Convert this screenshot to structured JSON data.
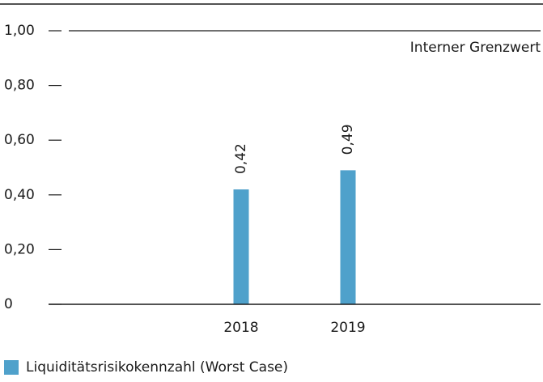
{
  "chart_data": {
    "type": "bar",
    "categories": [
      "2018",
      "2019"
    ],
    "series": [
      {
        "name": "Liquiditätsrisikokennzahl (Worst Case)",
        "color": "#4fa1cb",
        "values": [
          0.42,
          0.49
        ],
        "value_labels": [
          "0,42",
          "0,49"
        ]
      }
    ],
    "ylim": [
      0,
      1
    ],
    "yticks": [
      0,
      {
        "value": 0.2,
        "label": "0,20"
      },
      {
        "value": 0.4,
        "label": "0,40"
      },
      {
        "value": 0.6,
        "label": "0,60"
      },
      {
        "value": 0.8,
        "label": "0,80"
      },
      {
        "value": 1,
        "label": "1,00"
      }
    ],
    "reference_line": {
      "value": 1,
      "label": "Interner Grenzwert"
    },
    "legend": "bottom-left"
  }
}
